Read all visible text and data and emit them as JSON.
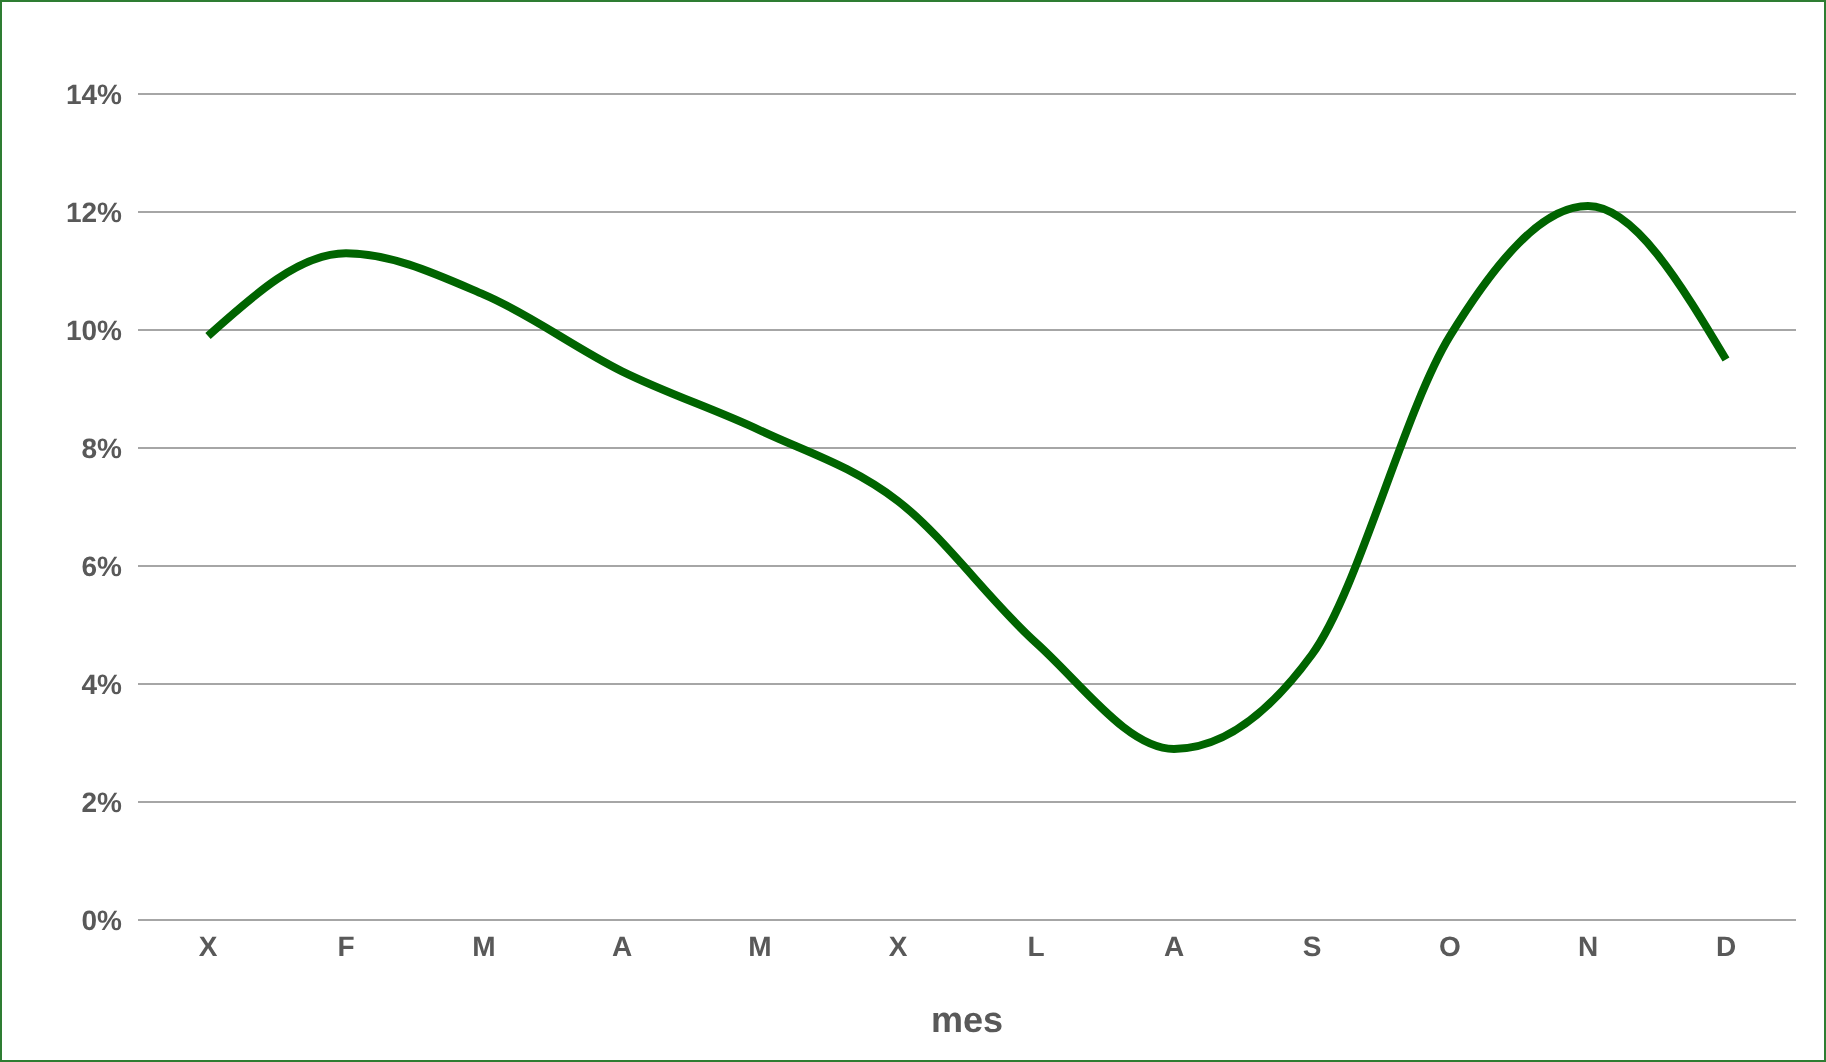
{
  "chart_data": {
    "type": "line",
    "xlabel": "mes",
    "categories": [
      "X",
      "F",
      "M",
      "A",
      "M",
      "X",
      "L",
      "A",
      "S",
      "O",
      "N",
      "D"
    ],
    "series": [
      {
        "color": "#006400",
        "values": [
          9.9,
          11.3,
          10.6,
          9.3,
          8.3,
          7.1,
          4.7,
          2.9,
          4.5,
          9.9,
          12.1,
          9.5
        ]
      }
    ],
    "ylim": [
      0,
      14
    ],
    "yticks": [
      {
        "value": 0,
        "label": "0%"
      },
      {
        "value": 2,
        "label": "2%"
      },
      {
        "value": 4,
        "label": "4%"
      },
      {
        "value": 6,
        "label": "6%"
      },
      {
        "value": 8,
        "label": "8%"
      },
      {
        "value": 10,
        "label": "10%"
      },
      {
        "value": 12,
        "label": "12%"
      },
      {
        "value": 14,
        "label": "14%"
      }
    ],
    "grid": "y",
    "marker": "none",
    "line_style": "solid",
    "legend": false
  }
}
